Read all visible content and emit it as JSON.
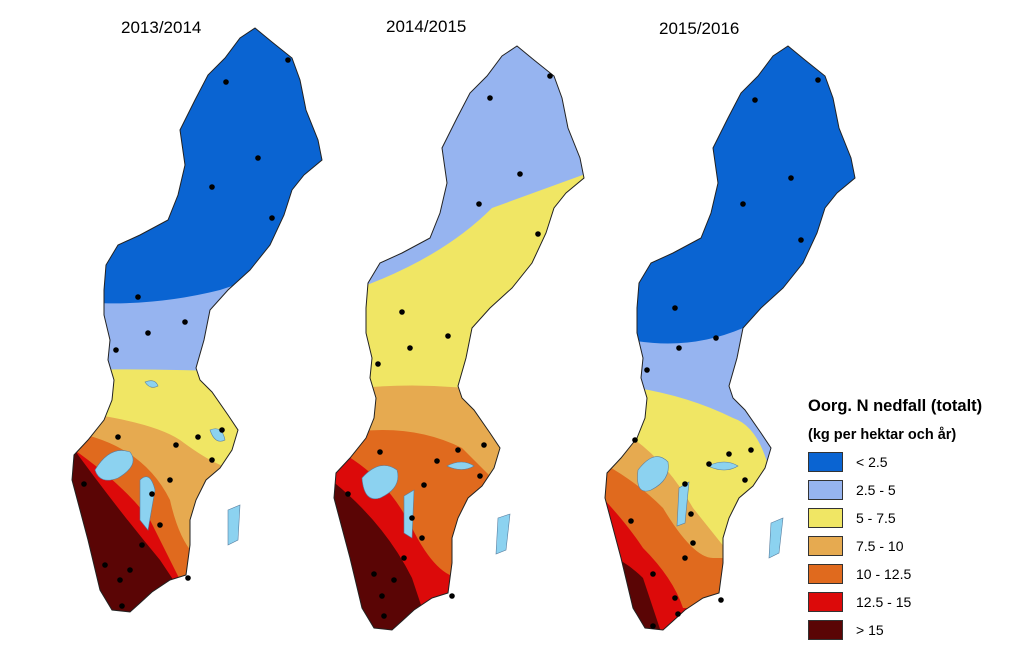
{
  "maps": [
    {
      "title": "2013/2014"
    },
    {
      "title": "2014/2015"
    },
    {
      "title": "2015/2016"
    }
  ],
  "legend": {
    "title": "Oorg. N nedfall (totalt)",
    "subtitle": "(kg per hektar och år)",
    "classes": [
      {
        "label": "< 2.5",
        "color": "#0a64d2"
      },
      {
        "label": "2.5 - 5",
        "color": "#96b4f0"
      },
      {
        "label": "5 - 7.5",
        "color": "#f0e664"
      },
      {
        "label": "7.5 - 10",
        "color": "#e6aa50"
      },
      {
        "label": "10 - 12.5",
        "color": "#e06a1e"
      },
      {
        "label": "12.5 - 15",
        "color": "#dc0a0a"
      },
      {
        "label": "> 15",
        "color": "#5a0505"
      }
    ]
  },
  "colors": {
    "lakes": "#8cd2f0",
    "stations": "#000000",
    "outline": "#222222"
  }
}
